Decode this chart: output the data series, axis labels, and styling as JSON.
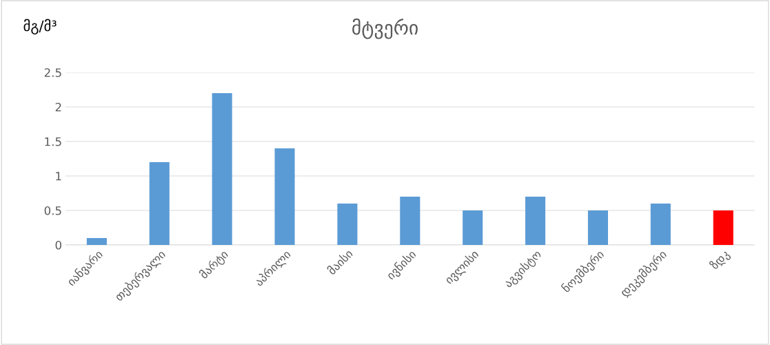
{
  "chart_data": {
    "type": "bar",
    "title": "მტვერი",
    "ylabel": "მგ/მ³",
    "categories": [
      "იანვარი",
      "თებერვალი",
      "მარტი",
      "აპრილი",
      "მაისი",
      "ივნისი",
      "ივლისი",
      "აგვისტო",
      "ნოემბერი",
      "დეკემბერი",
      "ზდკ"
    ],
    "values": [
      0.1,
      1.2,
      2.2,
      1.4,
      0.6,
      0.7,
      0.5,
      0.7,
      0.5,
      0.6,
      0.5
    ],
    "colors": [
      "#5b9bd5",
      "#5b9bd5",
      "#5b9bd5",
      "#5b9bd5",
      "#5b9bd5",
      "#5b9bd5",
      "#5b9bd5",
      "#5b9bd5",
      "#5b9bd5",
      "#5b9bd5",
      "#ff0000"
    ],
    "ylim": [
      0,
      2.5
    ],
    "yticks": [
      0,
      0.5,
      1,
      1.5,
      2,
      2.5
    ],
    "grid": "y"
  }
}
